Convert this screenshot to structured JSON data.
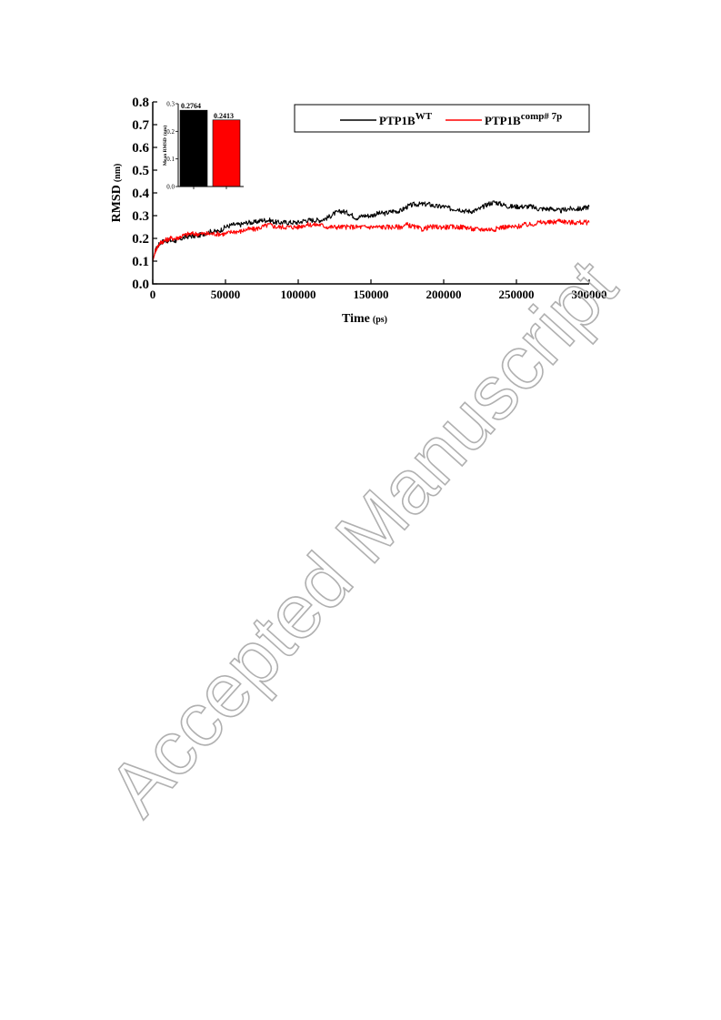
{
  "watermark": "Accepted Manuscript",
  "chart_data": [
    {
      "type": "line",
      "title": "",
      "xlabel": "Time",
      "xlabel_unit": "(ps)",
      "ylabel": "RMSD",
      "ylabel_unit": "(nm)",
      "xlim": [
        0,
        300000
      ],
      "ylim": [
        0.0,
        0.8
      ],
      "xticks": [
        0,
        50000,
        100000,
        150000,
        200000,
        250000,
        300000
      ],
      "yticks": [
        0.0,
        0.1,
        0.2,
        0.3,
        0.4,
        0.5,
        0.6,
        0.7,
        0.8
      ],
      "ytick_labels": [
        "0.0",
        "0.1",
        "0.2",
        "0.3",
        "0.4",
        "0.5",
        "0.6",
        "0.7",
        "0.8"
      ],
      "grid": false,
      "legend": "top-right",
      "series": [
        {
          "name": "PTP1B",
          "name_sup": "WT",
          "color": "#000000",
          "x": [
            0,
            2000,
            5000,
            8000,
            12000,
            16000,
            20000,
            25000,
            30000,
            35000,
            40000,
            45000,
            50000,
            55000,
            60000,
            65000,
            70000,
            75000,
            80000,
            85000,
            90000,
            95000,
            100000,
            105000,
            110000,
            115000,
            120000,
            125000,
            130000,
            135000,
            140000,
            145000,
            150000,
            155000,
            160000,
            165000,
            170000,
            175000,
            180000,
            185000,
            190000,
            195000,
            200000,
            205000,
            210000,
            215000,
            220000,
            225000,
            230000,
            235000,
            240000,
            245000,
            250000,
            255000,
            260000,
            265000,
            270000,
            275000,
            280000,
            285000,
            290000,
            295000,
            300000
          ],
          "y": [
            0.1,
            0.15,
            0.18,
            0.19,
            0.19,
            0.19,
            0.2,
            0.21,
            0.21,
            0.22,
            0.23,
            0.23,
            0.25,
            0.26,
            0.26,
            0.27,
            0.27,
            0.28,
            0.28,
            0.27,
            0.27,
            0.27,
            0.27,
            0.28,
            0.28,
            0.28,
            0.29,
            0.31,
            0.32,
            0.31,
            0.29,
            0.3,
            0.3,
            0.31,
            0.31,
            0.32,
            0.32,
            0.34,
            0.35,
            0.35,
            0.35,
            0.34,
            0.34,
            0.33,
            0.33,
            0.32,
            0.32,
            0.33,
            0.35,
            0.36,
            0.35,
            0.34,
            0.34,
            0.34,
            0.34,
            0.33,
            0.33,
            0.33,
            0.32,
            0.33,
            0.33,
            0.33,
            0.34
          ]
        },
        {
          "name": "PTP1B",
          "name_sup": "comp# 7p",
          "color": "#ff0000",
          "x": [
            0,
            2000,
            5000,
            8000,
            12000,
            16000,
            20000,
            25000,
            30000,
            35000,
            40000,
            45000,
            50000,
            55000,
            60000,
            65000,
            70000,
            75000,
            80000,
            85000,
            90000,
            95000,
            100000,
            105000,
            110000,
            115000,
            120000,
            125000,
            130000,
            135000,
            140000,
            145000,
            150000,
            155000,
            160000,
            165000,
            170000,
            175000,
            180000,
            185000,
            190000,
            195000,
            200000,
            205000,
            210000,
            215000,
            220000,
            225000,
            230000,
            235000,
            240000,
            245000,
            250000,
            255000,
            260000,
            265000,
            270000,
            275000,
            280000,
            285000,
            290000,
            295000,
            300000
          ],
          "y": [
            0.1,
            0.15,
            0.18,
            0.19,
            0.2,
            0.2,
            0.21,
            0.22,
            0.22,
            0.22,
            0.22,
            0.22,
            0.22,
            0.23,
            0.23,
            0.24,
            0.24,
            0.25,
            0.26,
            0.25,
            0.25,
            0.25,
            0.25,
            0.26,
            0.26,
            0.26,
            0.25,
            0.25,
            0.25,
            0.25,
            0.25,
            0.25,
            0.25,
            0.25,
            0.25,
            0.25,
            0.25,
            0.26,
            0.25,
            0.24,
            0.25,
            0.25,
            0.25,
            0.25,
            0.25,
            0.25,
            0.24,
            0.24,
            0.24,
            0.24,
            0.25,
            0.25,
            0.25,
            0.26,
            0.26,
            0.27,
            0.27,
            0.27,
            0.28,
            0.27,
            0.27,
            0.27,
            0.27
          ]
        }
      ]
    },
    {
      "type": "bar",
      "title": "",
      "ylabel": "Mean RMSD",
      "ylabel_unit": "(nm)",
      "ylim": [
        0.0,
        0.3
      ],
      "yticks": [
        0.0,
        0.1,
        0.2,
        0.3
      ],
      "ytick_labels": [
        "0.0",
        "0.1",
        "0.2",
        "0.3"
      ],
      "categories": [
        "PTP1B WT",
        "PTP1B comp# 7p"
      ],
      "values": [
        0.2764,
        0.2413
      ],
      "value_labels": [
        "0.2764",
        "0.2413"
      ],
      "colors": [
        "#000000",
        "#ff0000"
      ]
    }
  ]
}
